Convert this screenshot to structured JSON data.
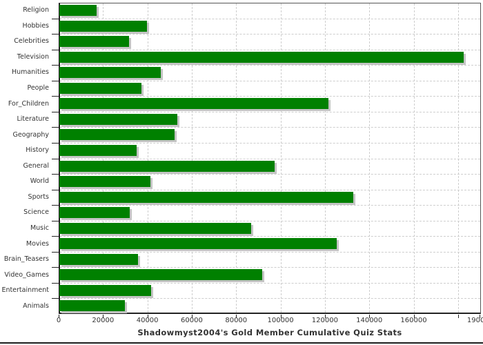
{
  "chart_data": {
    "type": "bar",
    "orientation": "horizontal",
    "title": "Shadowmyst2004's Gold Member Cumulative Quiz Stats",
    "xlabel": "",
    "ylabel": "",
    "categories": [
      "Religion",
      "Hobbies",
      "Celebrities",
      "Television",
      "Humanities",
      "People",
      "For_Children",
      "Literature",
      "Geography",
      "History",
      "General",
      "World",
      "Sports",
      "Science",
      "Music",
      "Movies",
      "Brain_Teasers",
      "Video_Games",
      "Entertainment",
      "Animals"
    ],
    "values": [
      16800,
      39600,
      31400,
      182200,
      45800,
      36900,
      121400,
      53100,
      51900,
      34900,
      97000,
      41000,
      132500,
      31800,
      86600,
      125000,
      35600,
      91300,
      41300,
      29400
    ],
    "xlim": [
      0,
      190000
    ],
    "x_tick_interval": 20000,
    "x_tick_labels": [
      "0",
      "20000",
      "40000",
      "60000",
      "80000",
      "100000",
      "120000",
      "140000",
      "160000"
    ],
    "x_end_tick_label": "190000",
    "grid": true,
    "legend": false,
    "colors": {
      "bar": "#008000",
      "bar_shadow": "#c4c4c4",
      "grid": "#cdcdcd",
      "axis": "#222222",
      "text": "#333333"
    }
  }
}
